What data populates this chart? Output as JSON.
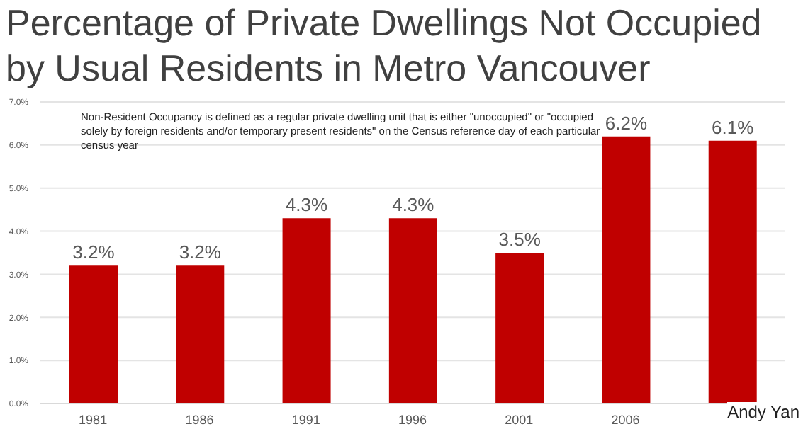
{
  "chart_data": {
    "type": "bar",
    "title": "Percentage of Private Dwellings Not Occupied by Usual Residents in Metro Vancouver",
    "categories": [
      "1981",
      "1986",
      "1991",
      "1996",
      "2001",
      "2006",
      null
    ],
    "values": [
      3.2,
      3.2,
      4.3,
      4.3,
      3.5,
      6.2,
      6.1
    ],
    "value_labels": [
      "3.2%",
      "3.2%",
      "4.3%",
      "4.3%",
      "3.5%",
      "6.2%",
      "6.1%"
    ],
    "color": "#c00000",
    "ylim": [
      0,
      7
    ],
    "yticks": [
      {
        "value": 0,
        "label": "0.0%"
      },
      {
        "value": 1,
        "label": "1.0%"
      },
      {
        "value": 2,
        "label": "2.0%"
      },
      {
        "value": 3,
        "label": "3.0%"
      },
      {
        "value": 4,
        "label": "4.0%"
      },
      {
        "value": 5,
        "label": "5.0%"
      },
      {
        "value": 6,
        "label": "6.0%"
      },
      {
        "value": 7,
        "label": "7.0%"
      }
    ],
    "grid": "y",
    "annotations": [
      "Non-Resident Occupancy is defined as a regular private dwelling unit that is either \"unoccupied\" or \"occupied solely by foreign residents and/or temporary present residents\" on the Census reference day of each particular census year",
      "Andy Yan"
    ]
  }
}
